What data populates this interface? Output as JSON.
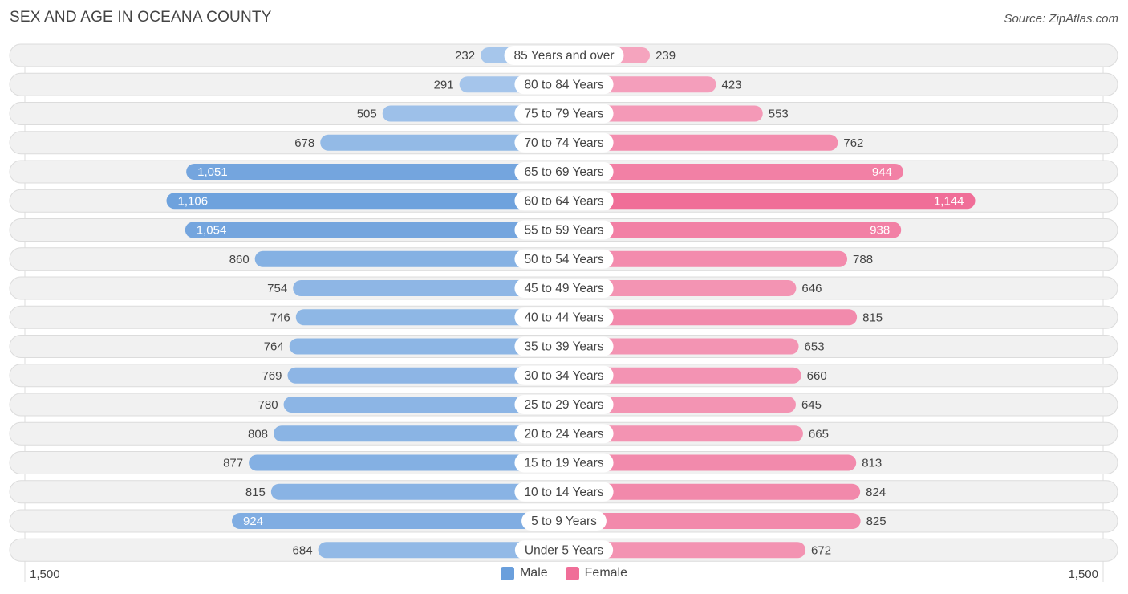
{
  "title": "SEX AND AGE IN OCEANA COUNTY",
  "source": "Source: ZipAtlas.com",
  "colors": {
    "male_light": "#a9c8ec",
    "male_dark": "#6a9fdc",
    "female_light": "#f5a6c0",
    "female_dark": "#f06e98",
    "row_bg": "#f1f1f1",
    "row_border": "#dcdcdc"
  },
  "chart_data": {
    "type": "bar",
    "orientation": "horizontal-diverging",
    "title": "SEX AND AGE IN OCEANA COUNTY",
    "categories": [
      "85 Years and over",
      "80 to 84 Years",
      "75 to 79 Years",
      "70 to 74 Years",
      "65 to 69 Years",
      "60 to 64 Years",
      "55 to 59 Years",
      "50 to 54 Years",
      "45 to 49 Years",
      "40 to 44 Years",
      "35 to 39 Years",
      "30 to 34 Years",
      "25 to 29 Years",
      "20 to 24 Years",
      "15 to 19 Years",
      "10 to 14 Years",
      "5 to 9 Years",
      "Under 5 Years"
    ],
    "series": [
      {
        "name": "Male",
        "values": [
          232,
          291,
          505,
          678,
          1051,
          1106,
          1054,
          860,
          754,
          746,
          764,
          769,
          780,
          808,
          877,
          815,
          924,
          684
        ],
        "labels": [
          "232",
          "291",
          "505",
          "678",
          "1,051",
          "1,106",
          "1,054",
          "860",
          "754",
          "746",
          "764",
          "769",
          "780",
          "808",
          "877",
          "815",
          "924",
          "684"
        ]
      },
      {
        "name": "Female",
        "values": [
          239,
          423,
          553,
          762,
          944,
          1144,
          938,
          788,
          646,
          815,
          653,
          660,
          645,
          665,
          813,
          824,
          825,
          672
        ],
        "labels": [
          "239",
          "423",
          "553",
          "762",
          "944",
          "1,144",
          "938",
          "788",
          "646",
          "815",
          "653",
          "660",
          "645",
          "665",
          "813",
          "824",
          "825",
          "672"
        ]
      }
    ],
    "xlim": [
      0,
      1500
    ],
    "axis_labels": {
      "left": "1,500",
      "right": "1,500"
    },
    "legend": [
      "Male",
      "Female"
    ],
    "legend_position": "bottom-center"
  }
}
